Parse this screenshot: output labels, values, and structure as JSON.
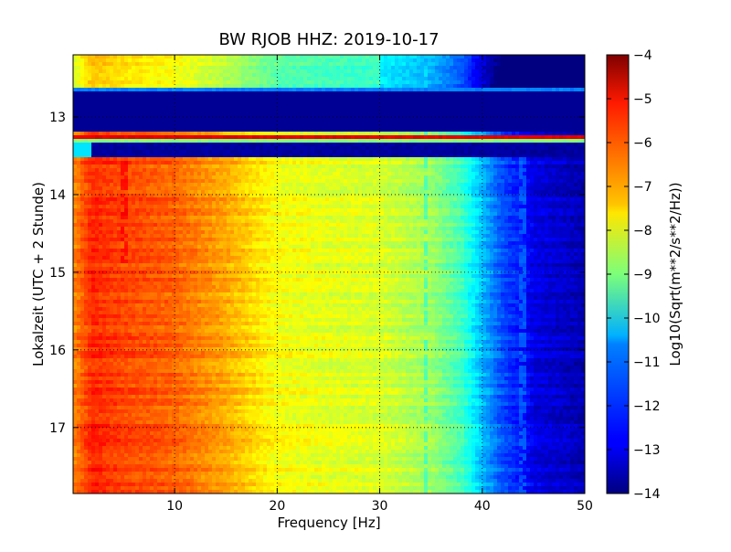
{
  "chart_data": {
    "type": "heatmap",
    "title": "BW RJOB HHZ: 2019-10-17",
    "xlabel": "Frequency [Hz]",
    "ylabel": "Lokalzeit (UTC + 2 Stunde)",
    "xlim": [
      0.1,
      50
    ],
    "ylim": [
      12.2,
      17.85
    ],
    "y_inverted": true,
    "x_ticks": [
      {
        "value": 10,
        "label": "10"
      },
      {
        "value": 20,
        "label": "20"
      },
      {
        "value": 30,
        "label": "30"
      },
      {
        "value": 40,
        "label": "40"
      },
      {
        "value": 50,
        "label": "50"
      }
    ],
    "y_ticks": [
      {
        "value": 13,
        "label": "13"
      },
      {
        "value": 14,
        "label": "14"
      },
      {
        "value": 15,
        "label": "15"
      },
      {
        "value": 16,
        "label": "16"
      },
      {
        "value": 17,
        "label": "17"
      }
    ],
    "grid": true,
    "colormap": "jet",
    "colorbar": {
      "label": "Log10(Sqrt(m**2/s**2/Hz))",
      "range": [
        -14,
        -4
      ],
      "ticks": [
        {
          "value": -4,
          "label": "−4"
        },
        {
          "value": -5,
          "label": "−5"
        },
        {
          "value": -6,
          "label": "−6"
        },
        {
          "value": -7,
          "label": "−7"
        },
        {
          "value": -8,
          "label": "−8"
        },
        {
          "value": -9,
          "label": "−9"
        },
        {
          "value": -10,
          "label": "−10"
        },
        {
          "value": -11,
          "label": "−11"
        },
        {
          "value": -12,
          "label": "−12"
        },
        {
          "value": -13,
          "label": "−13"
        },
        {
          "value": -14,
          "label": "−14"
        }
      ]
    },
    "spectrum_profile": [
      {
        "freq": 0.1,
        "value": -6.6
      },
      {
        "freq": 2,
        "value": -5.6
      },
      {
        "freq": 5,
        "value": -5.9
      },
      {
        "freq": 10,
        "value": -6.2
      },
      {
        "freq": 15,
        "value": -6.9
      },
      {
        "freq": 20,
        "value": -7.8
      },
      {
        "freq": 25,
        "value": -8.0
      },
      {
        "freq": 30,
        "value": -8.1
      },
      {
        "freq": 35,
        "value": -8.7
      },
      {
        "freq": 38,
        "value": -9.6
      },
      {
        "freq": 40,
        "value": -10.9
      },
      {
        "freq": 42,
        "value": -12.0
      },
      {
        "freq": 44,
        "value": -12.6
      },
      {
        "freq": 45,
        "value": -13.0
      },
      {
        "freq": 50,
        "value": -13.5
      }
    ],
    "early_period_offset": {
      "until_hour": 12.65,
      "offset": -2.0
    },
    "data_gap": {
      "from_hour": 12.65,
      "to_hour": 13.2,
      "value": -14
    },
    "time_bands": [
      {
        "from_hour": 12.62,
        "to_hour": 12.67,
        "value": -11.5
      },
      {
        "from_hour": 13.22,
        "to_hour": 13.3,
        "value": -5.0
      },
      {
        "from_hour": 13.3,
        "to_hour": 13.35,
        "value": -9.0
      },
      {
        "from_hour": 13.35,
        "to_hour": 13.5,
        "value": -13.7
      }
    ],
    "spectral_lines": [
      {
        "freq": 5.0,
        "from_hour": 13.5,
        "to_hour": 14.9,
        "value": -4.8
      },
      {
        "freq": 34.5,
        "from_hour": 12.3,
        "to_hour": 17.85,
        "value": -10.2
      },
      {
        "freq": 44.0,
        "from_hour": 13.5,
        "to_hour": 17.85,
        "value": -11.2
      }
    ]
  }
}
